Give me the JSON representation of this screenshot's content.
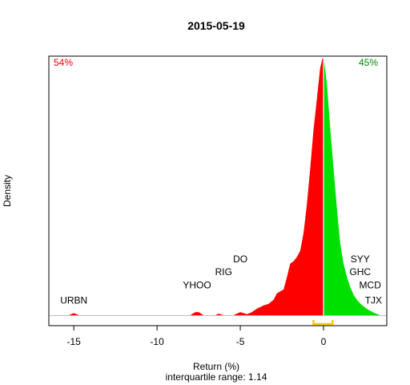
{
  "chart_data": {
    "type": "area",
    "title": "2015-05-19",
    "xlabel": "Return (%)",
    "ylabel": "Density",
    "subtitle": "interquartile range: 1.14",
    "xlim": [
      -16.5,
      3.8
    ],
    "ylim": [
      0,
      1
    ],
    "x_ticks": [
      -15,
      -10,
      -5,
      0
    ],
    "x_tick_labels": [
      "-15",
      "-10",
      "-5",
      "0"
    ],
    "pct_negative": "54%",
    "pct_positive": "45%",
    "colors": {
      "negative": "#ff0000",
      "positive": "#00e000",
      "iqr": "#ffcc00",
      "zero_line": "#ffffff",
      "baseline": "#bebebe"
    },
    "iqr": [
      -0.6,
      0.54
    ],
    "density": [
      [
        -16.2,
        0.0
      ],
      [
        -15.3,
        0.0
      ],
      [
        -15.0,
        0.008
      ],
      [
        -14.7,
        0.0
      ],
      [
        -8.0,
        0.0
      ],
      [
        -7.7,
        0.012
      ],
      [
        -7.5,
        0.012
      ],
      [
        -7.2,
        0.0
      ],
      [
        -6.5,
        0.0
      ],
      [
        -6.3,
        0.006
      ],
      [
        -6.0,
        0.0
      ],
      [
        -5.4,
        0.0
      ],
      [
        -5.0,
        0.012
      ],
      [
        -4.6,
        0.004
      ],
      [
        -4.3,
        0.012
      ],
      [
        -4.0,
        0.026
      ],
      [
        -3.6,
        0.038
      ],
      [
        -3.3,
        0.044
      ],
      [
        -3.0,
        0.06
      ],
      [
        -2.8,
        0.085
      ],
      [
        -2.4,
        0.1
      ],
      [
        -2.2,
        0.148
      ],
      [
        -2.0,
        0.2
      ],
      [
        -1.8,
        0.21
      ],
      [
        -1.6,
        0.226
      ],
      [
        -1.4,
        0.25
      ],
      [
        -1.2,
        0.32
      ],
      [
        -1.0,
        0.43
      ],
      [
        -0.8,
        0.57
      ],
      [
        -0.6,
        0.72
      ],
      [
        -0.4,
        0.84
      ],
      [
        -0.2,
        0.96
      ],
      [
        -0.05,
        1.0
      ],
      [
        0.05,
        0.98
      ],
      [
        0.2,
        0.9
      ],
      [
        0.4,
        0.73
      ],
      [
        0.6,
        0.57
      ],
      [
        0.8,
        0.42
      ],
      [
        1.0,
        0.28
      ],
      [
        1.2,
        0.2
      ],
      [
        1.4,
        0.15
      ],
      [
        1.6,
        0.11
      ],
      [
        1.8,
        0.08
      ],
      [
        2.0,
        0.06
      ],
      [
        2.3,
        0.04
      ],
      [
        2.6,
        0.025
      ],
      [
        3.0,
        0.01
      ],
      [
        3.4,
        0.0
      ]
    ],
    "labels": [
      {
        "text": "URBN",
        "x": -15.0,
        "y": 0.045
      },
      {
        "text": "YHOO",
        "x": -7.6,
        "y": 0.105
      },
      {
        "text": "RIG",
        "x": -6.0,
        "y": 0.155
      },
      {
        "text": "DO",
        "x": -5.0,
        "y": 0.205
      },
      {
        "text": "SYY",
        "x": 2.2,
        "y": 0.205
      },
      {
        "text": "GHC",
        "x": 2.2,
        "y": 0.155
      },
      {
        "text": "MCD",
        "x": 2.8,
        "y": 0.105
      },
      {
        "text": "TJX",
        "x": 3.0,
        "y": 0.045
      }
    ]
  }
}
